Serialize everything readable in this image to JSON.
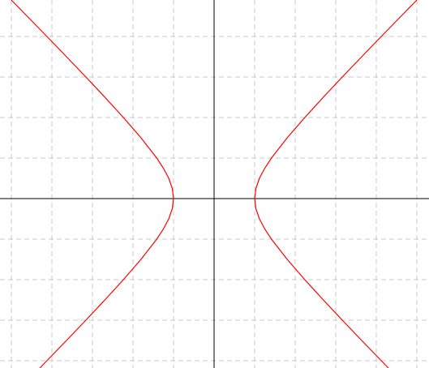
{
  "chart_data": {
    "type": "line",
    "xlim": [
      -5.28,
      5.3
    ],
    "ylim": [
      -4.18,
      4.9
    ],
    "xticks": [
      -5,
      -4,
      -3,
      -2,
      -1,
      0,
      1,
      2,
      3,
      4,
      5
    ],
    "yticks": [
      -4,
      -3,
      -2,
      -1,
      0,
      1,
      2,
      3,
      4
    ],
    "grid": true,
    "axes": true,
    "series": [
      {
        "color": "#ff0000",
        "x": [
          -4.317,
          -4.123,
          -3.64,
          -3.162,
          -2.693,
          -2.236,
          -1.803,
          -1.414,
          -1.25,
          -1.118,
          -1.031,
          -1,
          -1.031,
          -1.118,
          -1.25,
          -1.414,
          -1.803,
          -2.236,
          -2.693,
          -3.162,
          -3.64,
          -4.123,
          -4.61,
          -5.001
        ],
        "values": [
          -4.2,
          -4,
          -3.5,
          -3,
          -2.5,
          -2,
          -1.5,
          -1,
          -0.75,
          -0.5,
          -0.25,
          0,
          0.25,
          0.5,
          0.75,
          1,
          1.5,
          2,
          2.5,
          3,
          3.5,
          4,
          4.5,
          4.9
        ]
      },
      {
        "color": "#ff0000",
        "x": [
          4.317,
          4.123,
          3.64,
          3.162,
          2.693,
          2.236,
          1.803,
          1.414,
          1.25,
          1.118,
          1.031,
          1,
          1.031,
          1.118,
          1.25,
          1.414,
          1.803,
          2.236,
          2.693,
          3.162,
          3.64,
          4.123,
          4.61,
          5.001
        ],
        "values": [
          -4.2,
          -4,
          -3.5,
          -3,
          -2.5,
          -2,
          -1.5,
          -1,
          -0.75,
          -0.5,
          -0.25,
          0,
          0.25,
          0.5,
          0.75,
          1,
          1.5,
          2,
          2.5,
          3,
          3.5,
          4,
          4.5,
          4.9
        ]
      }
    ]
  }
}
